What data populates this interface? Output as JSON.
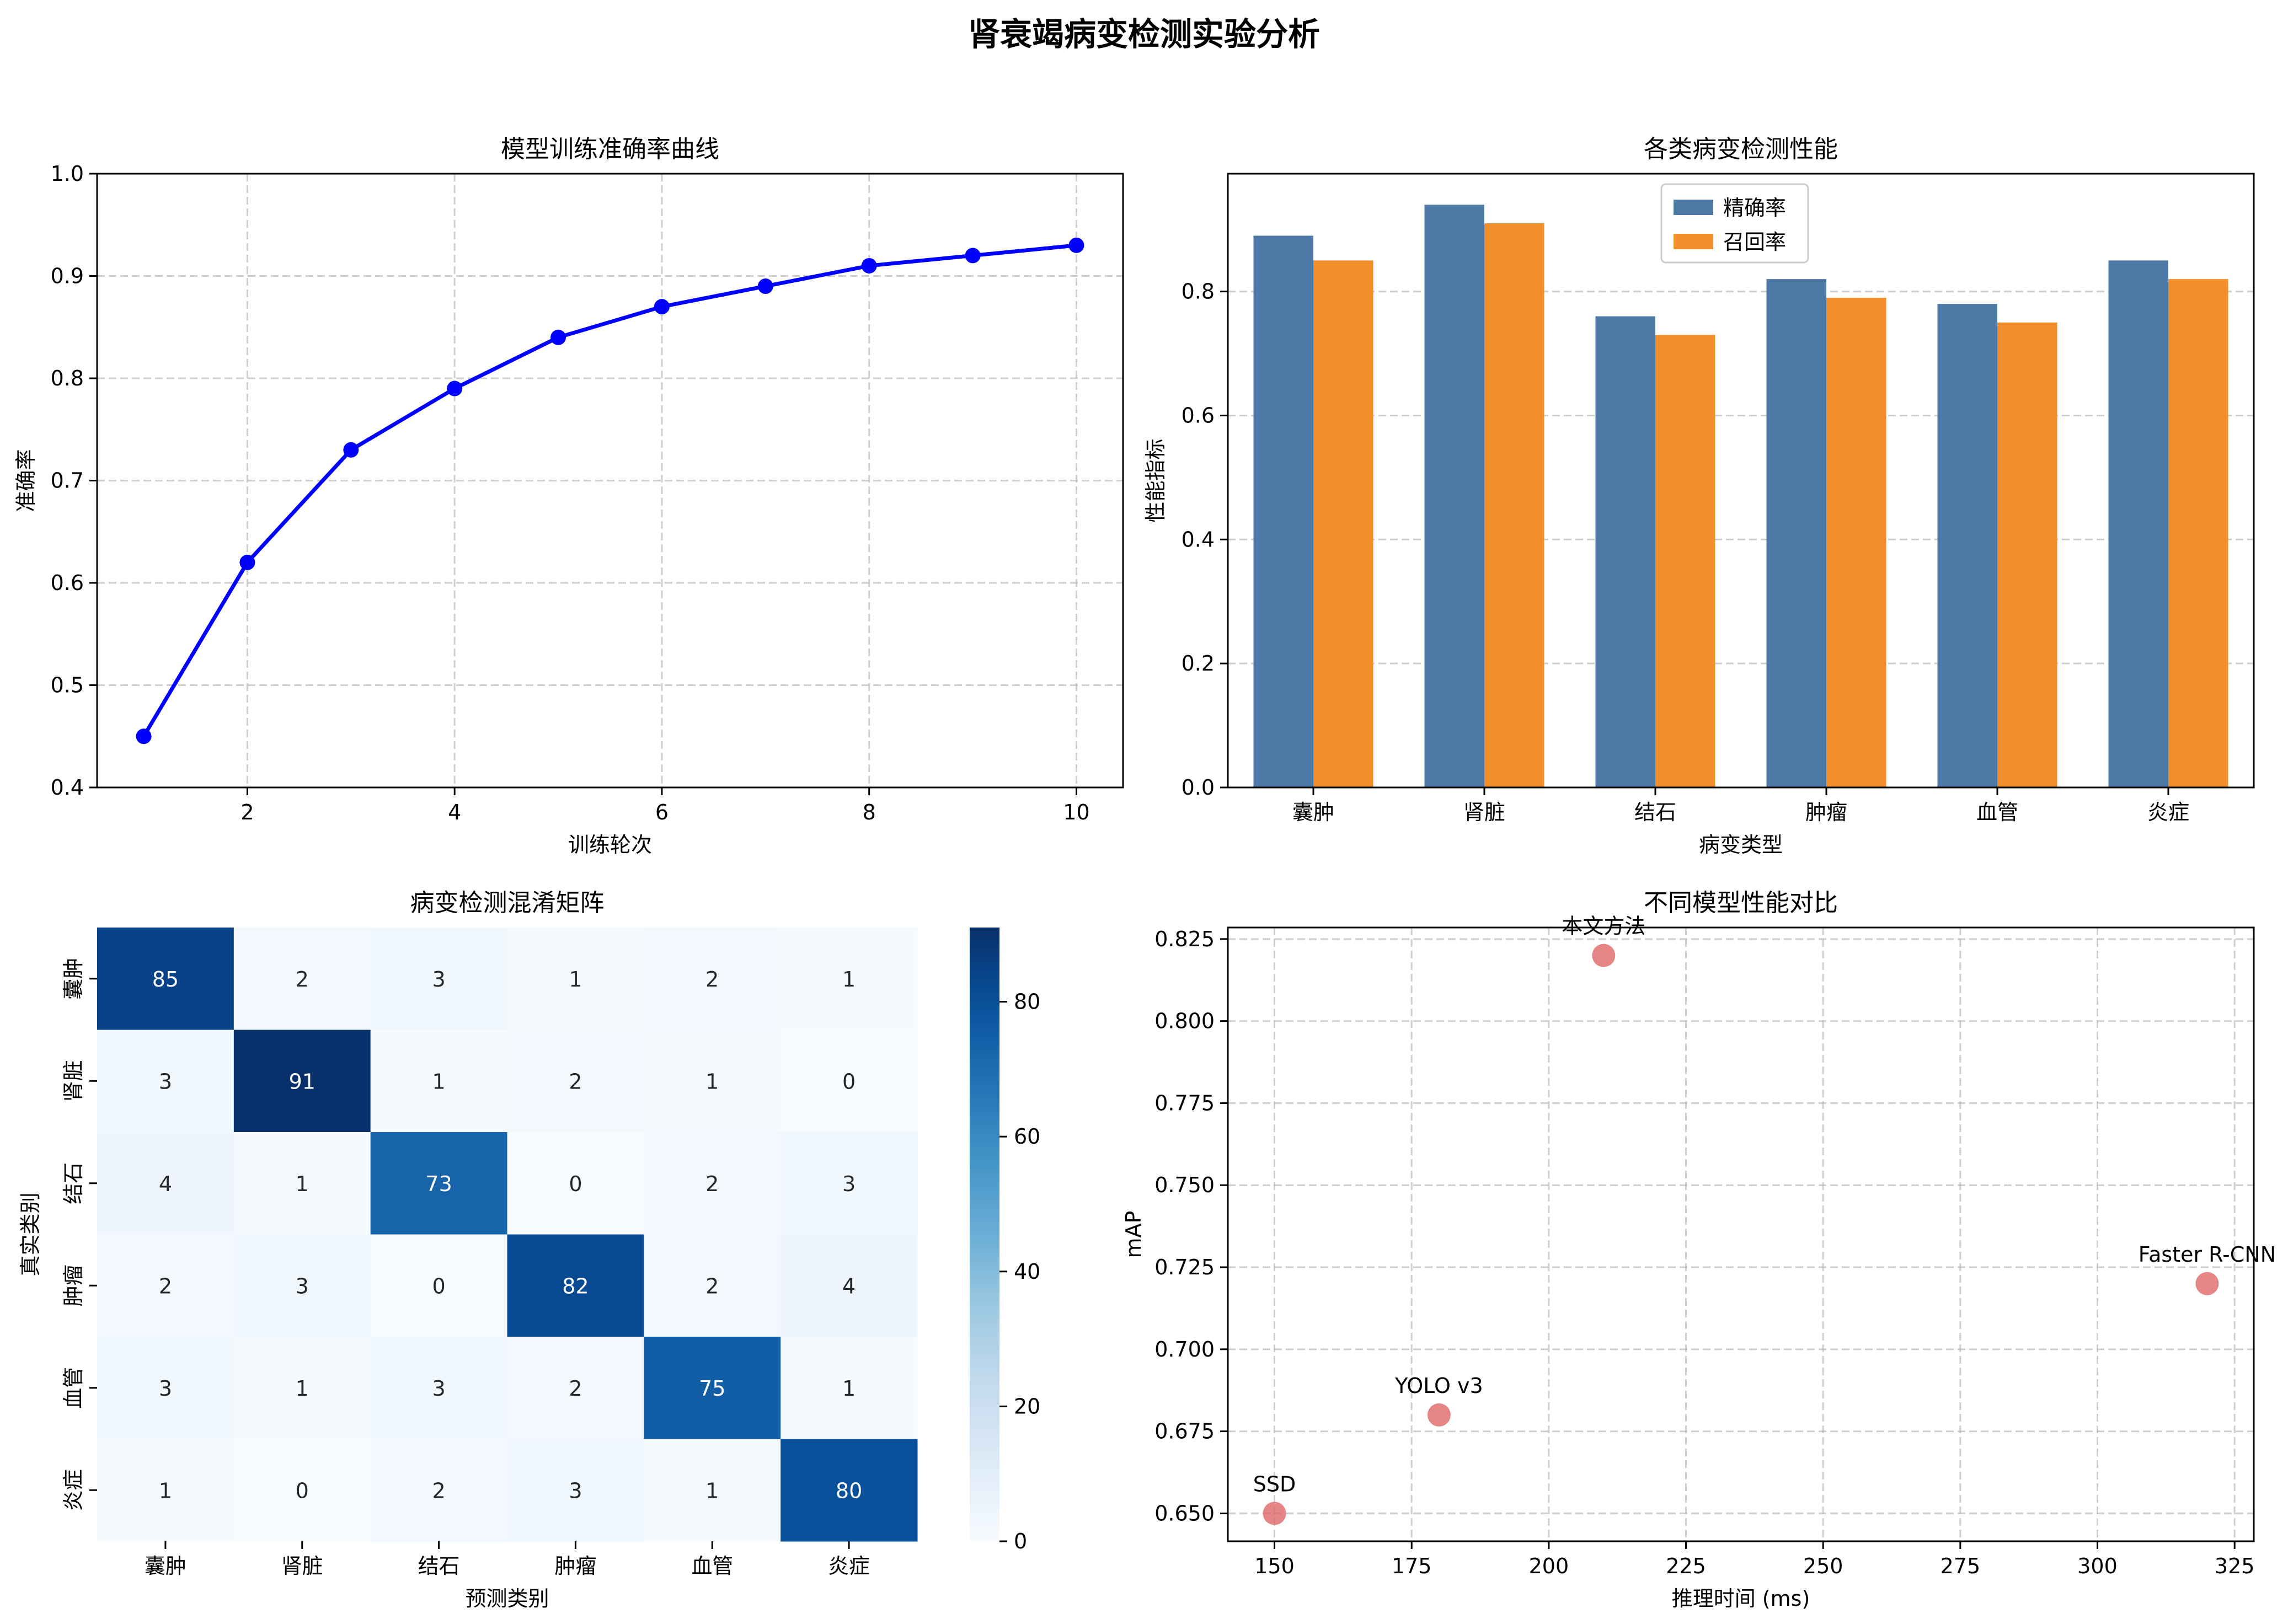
{
  "figure": {
    "title": "肾衰竭病变检测实验分析"
  },
  "chart_data": [
    {
      "type": "line",
      "title": "模型训练准确率曲线",
      "xlabel": "训练轮次",
      "ylabel": "准确率",
      "x": [
        1,
        2,
        3,
        4,
        5,
        6,
        7,
        8,
        9,
        10
      ],
      "y": [
        0.45,
        0.62,
        0.73,
        0.79,
        0.84,
        0.87,
        0.89,
        0.91,
        0.92,
        0.93
      ],
      "xlim": [
        0.55,
        10.45
      ],
      "ylim": [
        0.4,
        1.0
      ],
      "xticks": [
        2,
        4,
        6,
        8,
        10
      ],
      "yticks": [
        0.4,
        0.5,
        0.6,
        0.7,
        0.8,
        0.9,
        1.0
      ],
      "grid": true,
      "color": "#0000ff"
    },
    {
      "type": "bar",
      "title": "各类病变检测性能",
      "xlabel": "病变类型",
      "ylabel": "性能指标",
      "categories": [
        "囊肿",
        "肾脏",
        "结石",
        "肿瘤",
        "血管",
        "炎症"
      ],
      "series": [
        {
          "name": "精确率",
          "values": [
            0.89,
            0.94,
            0.76,
            0.82,
            0.78,
            0.85
          ],
          "color": "#4e79a7"
        },
        {
          "name": "召回率",
          "values": [
            0.85,
            0.91,
            0.73,
            0.79,
            0.75,
            0.82
          ],
          "color": "#f28e2b"
        }
      ],
      "ylim": [
        0,
        0.99
      ],
      "yticks": [
        0.0,
        0.2,
        0.4,
        0.6,
        0.8
      ],
      "grid": "y",
      "legend": "top-center"
    },
    {
      "type": "heatmap",
      "title": "病变检测混淆矩阵",
      "xlabel": "预测类别",
      "ylabel": "真实类别",
      "x_categories": [
        "囊肿",
        "肾脏",
        "结石",
        "肿瘤",
        "血管",
        "炎症"
      ],
      "y_categories": [
        "囊肿",
        "肾脏",
        "结石",
        "肿瘤",
        "血管",
        "炎症"
      ],
      "matrix": [
        [
          85,
          2,
          3,
          1,
          2,
          1
        ],
        [
          3,
          91,
          1,
          2,
          1,
          0
        ],
        [
          4,
          1,
          73,
          0,
          2,
          3
        ],
        [
          2,
          3,
          0,
          82,
          2,
          4
        ],
        [
          3,
          1,
          3,
          2,
          75,
          1
        ],
        [
          1,
          0,
          2,
          3,
          1,
          80
        ]
      ],
      "colorbar": {
        "min": 0,
        "max": 91,
        "ticks": [
          0,
          20,
          40,
          60,
          80
        ]
      },
      "colormap": "Blues"
    },
    {
      "type": "scatter",
      "title": "不同模型性能对比",
      "xlabel": "推理时间 (ms)",
      "ylabel": "mAP",
      "points": [
        {
          "label": "SSD",
          "x": 150,
          "y": 0.65
        },
        {
          "label": "YOLO v3",
          "x": 180,
          "y": 0.68
        },
        {
          "label": "本文方法",
          "x": 210,
          "y": 0.82
        },
        {
          "label": "Faster R-CNN",
          "x": 320,
          "y": 0.72
        }
      ],
      "xlim": [
        141.5,
        328.5
      ],
      "ylim": [
        0.6415,
        0.8285
      ],
      "xticks": [
        150,
        175,
        200,
        225,
        250,
        275,
        300,
        325
      ],
      "yticks": [
        0.65,
        0.675,
        0.7,
        0.725,
        0.75,
        0.775,
        0.8,
        0.825
      ],
      "grid": true,
      "color": "#e06666"
    }
  ]
}
